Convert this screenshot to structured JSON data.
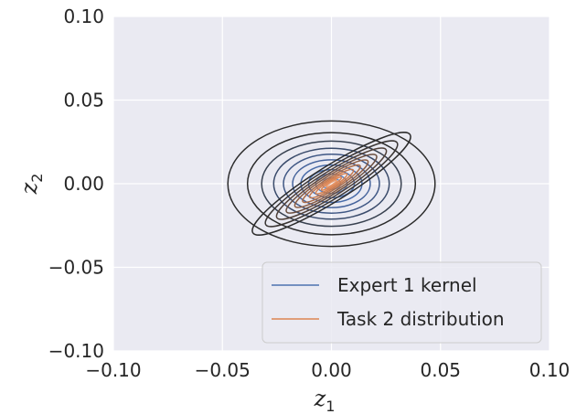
{
  "chart_data": {
    "type": "contour",
    "title": "",
    "xlabel": "z",
    "xlabel_sub": "1",
    "ylabel": "z",
    "ylabel_sub": "2",
    "xlim": [
      -0.1,
      0.1
    ],
    "ylim": [
      -0.1,
      0.1
    ],
    "xticks": [
      -0.1,
      -0.05,
      0.0,
      0.05,
      0.1
    ],
    "yticks": [
      -0.1,
      -0.05,
      0.0,
      0.05,
      0.1
    ],
    "xtick_labels": [
      "−0.10",
      "−0.05",
      "0.00",
      "0.05",
      "0.10"
    ],
    "ytick_labels": [
      "−0.10",
      "−0.05",
      "0.00",
      "0.05",
      "0.10"
    ],
    "grid": true,
    "legend_position": "lower-right",
    "background_color": "#eaeaf2",
    "series": [
      {
        "name": "Expert 1 kernel",
        "color": "#4c72b0",
        "center": [
          0.0,
          0.0
        ],
        "angle_deg": 0,
        "levels": [
          {
            "rx": 0.0475,
            "ry": 0.0375,
            "color": "#2b2b2b"
          },
          {
            "rx": 0.0385,
            "ry": 0.0305,
            "color": "#2b2b2b"
          },
          {
            "rx": 0.032,
            "ry": 0.0255,
            "color": "#37404f"
          },
          {
            "rx": 0.0265,
            "ry": 0.0212,
            "color": "#3a4b6b"
          },
          {
            "rx": 0.022,
            "ry": 0.0176,
            "color": "#3f5784"
          },
          {
            "rx": 0.0178,
            "ry": 0.0143,
            "color": "#44629b"
          },
          {
            "rx": 0.014,
            "ry": 0.0112,
            "color": "#486ba8"
          },
          {
            "rx": 0.0105,
            "ry": 0.0084,
            "color": "#4c72b0"
          },
          {
            "rx": 0.0072,
            "ry": 0.0058,
            "color": "#5a80bd"
          },
          {
            "rx": 0.0042,
            "ry": 0.0034,
            "color": "#6a8fc8"
          }
        ]
      },
      {
        "name": "Task 2 distribution",
        "color": "#dd8452",
        "center": [
          0.0,
          0.0
        ],
        "angle_deg": 32,
        "levels": [
          {
            "rx": 0.0425,
            "ry": 0.0105,
            "color": "#2b2b2b"
          },
          {
            "rx": 0.0355,
            "ry": 0.0088,
            "color": "#3a3533"
          },
          {
            "rx": 0.0295,
            "ry": 0.0073,
            "color": "#4f4039"
          },
          {
            "rx": 0.0243,
            "ry": 0.006,
            "color": "#6a4e3f"
          },
          {
            "rx": 0.0197,
            "ry": 0.0049,
            "color": "#8a5d44"
          },
          {
            "rx": 0.0155,
            "ry": 0.0038,
            "color": "#a96b48"
          },
          {
            "rx": 0.0118,
            "ry": 0.0029,
            "color": "#c5784d"
          },
          {
            "rx": 0.0084,
            "ry": 0.0021,
            "color": "#d6804f"
          },
          {
            "rx": 0.0054,
            "ry": 0.0013,
            "color": "#dd8452"
          },
          {
            "rx": 0.0028,
            "ry": 0.0007,
            "color": "#e59a6f"
          }
        ]
      }
    ]
  }
}
